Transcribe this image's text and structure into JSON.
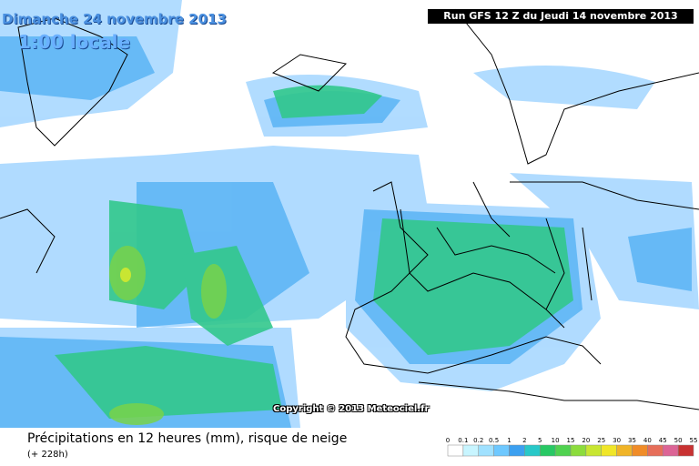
{
  "header": {
    "date": "Dimanche 24 novembre 2013",
    "hour": "1:00 locale",
    "run": "Run GFS 12 Z du Jeudi 14 novembre 2013"
  },
  "copyright": "Copyright © 2013 Meteociel.fr",
  "footer": {
    "title": "Précipitations en 12 heures (mm), risque de neige",
    "lead": "(+ 228h)"
  },
  "legend": {
    "labels": [
      "0",
      "0.1",
      "0.2",
      "0.5",
      "1",
      "2",
      "5",
      "10",
      "15",
      "20",
      "25",
      "30",
      "35",
      "40",
      "45",
      "50",
      "55"
    ],
    "colors": [
      "#ffffff",
      "#c8f5ff",
      "#a0e1ff",
      "#6ec8ff",
      "#3ca0f0",
      "#28c8c8",
      "#28c864",
      "#50d250",
      "#8cdc3c",
      "#c8e632",
      "#f0e628",
      "#f0b428",
      "#f08c28",
      "#e66e5a",
      "#dc6496",
      "#c83232"
    ]
  }
}
